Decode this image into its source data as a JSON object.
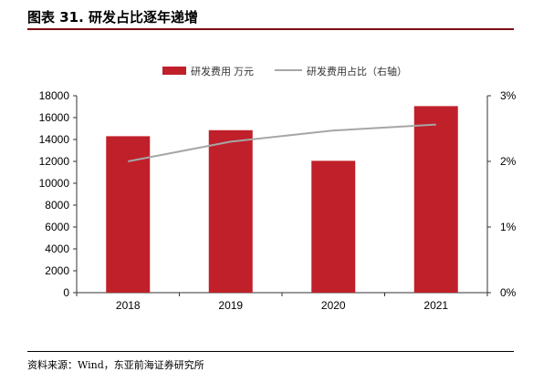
{
  "header": {
    "title": "图表 31. 研发占比逐年递增"
  },
  "footer": {
    "source": "资料来源：Wind，东亚前海证券研究所"
  },
  "colors": {
    "bar": "#c0202a",
    "line": "#a6a6a6",
    "title_rule": "#7a0f14"
  },
  "chart_data": {
    "type": "bar",
    "categories": [
      "2018",
      "2019",
      "2020",
      "2021"
    ],
    "series": [
      {
        "name": "研发费用 万元",
        "type": "bar",
        "axis": "left",
        "values": [
          14300,
          14850,
          12050,
          17050
        ]
      },
      {
        "name": "研发费用占比（右轴）",
        "type": "line",
        "axis": "right",
        "values": [
          2.0,
          2.3,
          2.47,
          2.56
        ]
      }
    ],
    "y_left": {
      "lim": [
        0,
        18000
      ],
      "ticks": [
        "0",
        "2000",
        "4000",
        "6000",
        "8000",
        "10000",
        "12000",
        "14000",
        "16000",
        "18000"
      ]
    },
    "y_right": {
      "lim": [
        0,
        3
      ],
      "unit": "%",
      "ticks": [
        "0%",
        "1%",
        "2%",
        "3%"
      ]
    },
    "legend_position": "top-center",
    "grid": false
  }
}
